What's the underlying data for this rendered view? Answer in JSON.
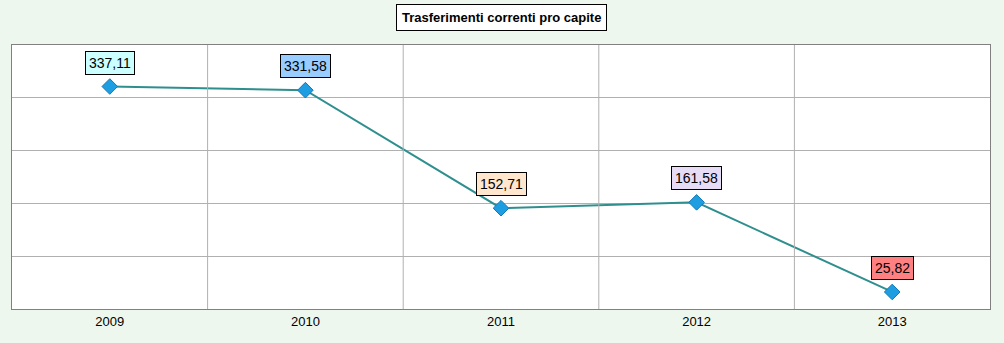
{
  "chart_data": {
    "type": "line",
    "title": "Trasferimenti correnti pro capite",
    "categories": [
      "2009",
      "2010",
      "2011",
      "2012",
      "2013"
    ],
    "values": [
      337.11,
      331.58,
      152.71,
      161.58,
      25.82
    ],
    "value_labels": [
      "337,11",
      "331,58",
      "152,71",
      "161,58",
      "25,82"
    ],
    "data_labels": true,
    "ylim": [
      0,
      400
    ],
    "yticks": [
      0,
      80,
      160,
      240,
      320,
      400
    ],
    "grid": true,
    "tick_labels": "x",
    "marker": "diamond",
    "color": "#1e9ee0"
  }
}
